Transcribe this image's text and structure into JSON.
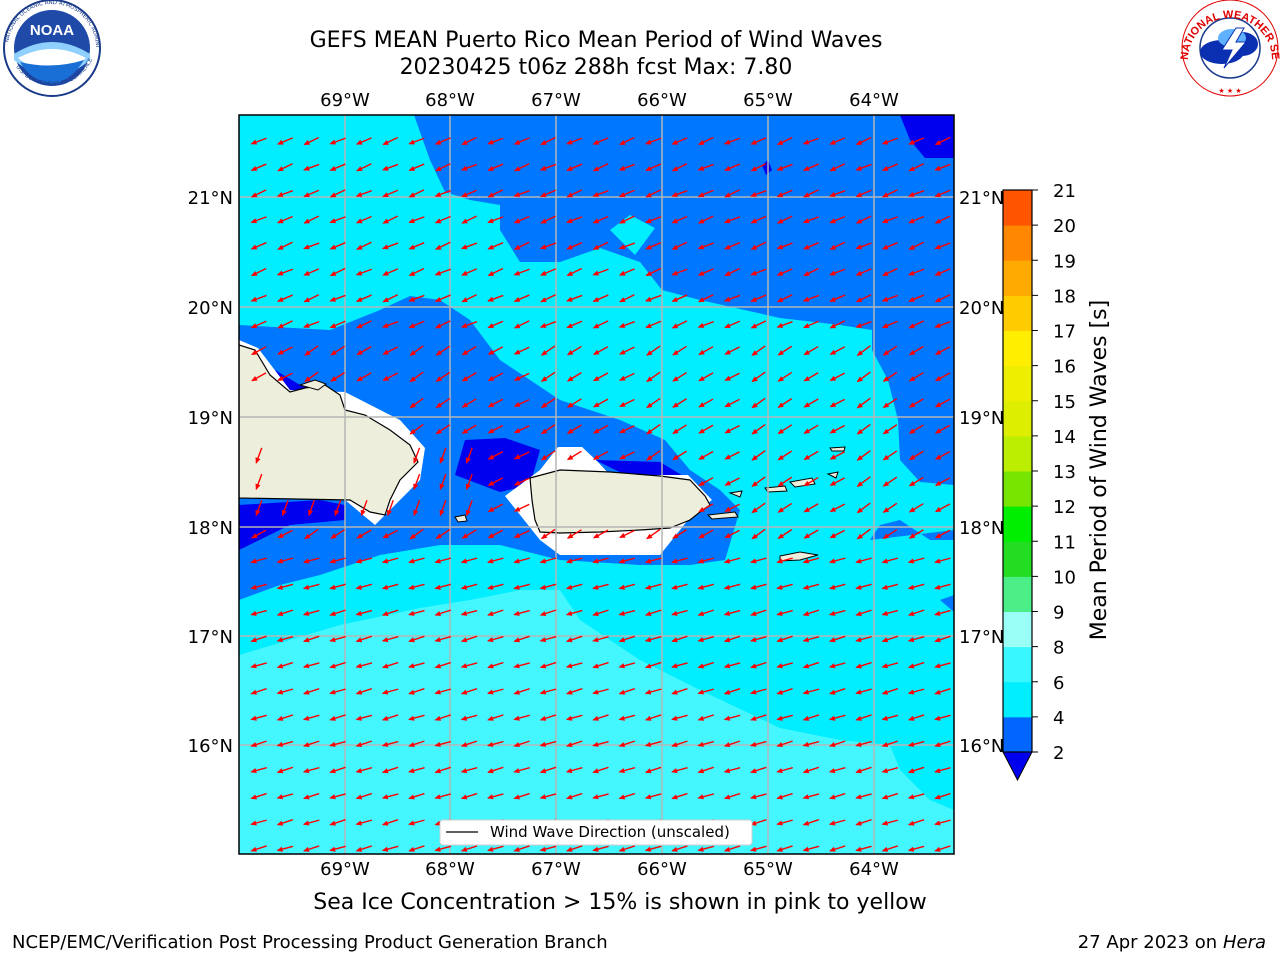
{
  "header": {
    "title_line1": "GEFS MEAN Puerto Rico Mean Period of Wind Waves",
    "title_line2": "20230425 t06z 288h fcst   Max: 7.80"
  },
  "logos": {
    "noaa_text": "NOAA",
    "noaa_ring_text": "NATIONAL OCEANIC AND ATMOSPHERIC ADMINISTRATION",
    "noaa_bottom_text": "U.S. DEPARTMENT OF COMMERCE",
    "nws_ring_text": "NATIONAL WEATHER SERVICE"
  },
  "map": {
    "lon_labels": [
      "69°W",
      "68°W",
      "67°W",
      "66°W",
      "65°W",
      "64°W"
    ],
    "lat_labels": [
      "21°N",
      "20°N",
      "19°N",
      "18°N",
      "17°N",
      "16°N"
    ],
    "legend_label": "Wind Wave Direction (unscaled)",
    "arrow_color": "#ff0000"
  },
  "colorbar": {
    "label": "Mean Period of Wind Waves [s]",
    "tick_labels": [
      "2",
      "4",
      "6",
      "8",
      "9",
      "10",
      "11",
      "12",
      "13",
      "14",
      "15",
      "16",
      "17",
      "18",
      "19",
      "20",
      "21"
    ],
    "colors": [
      "#0066ff",
      "#00eeff",
      "#39f7ff",
      "#99fff7",
      "#4cee88",
      "#22dd22",
      "#00ee00",
      "#77e500",
      "#bbee00",
      "#ddee00",
      "#eeee00",
      "#ffee00",
      "#ffcc00",
      "#ffaa00",
      "#ff8800",
      "#ff5500",
      "#ff2200",
      "#ff0000"
    ],
    "extend_min_color": "#0000ee"
  },
  "field_colors": {
    "land": "#eeeedd",
    "missing": "#ffffff",
    "period_2_4": "#0077ff",
    "period_4_6": "#00eeff",
    "period_6_8": "#44f7ff",
    "below_2": "#0000ee"
  },
  "footer": {
    "sea_ice_note": "Sea Ice Concentration > 15% is shown in pink to yellow",
    "left": "NCEP/EMC/Verification Post Processing Product Generation Branch",
    "date": "27 Apr 2023 on ",
    "machine": "Hera"
  }
}
